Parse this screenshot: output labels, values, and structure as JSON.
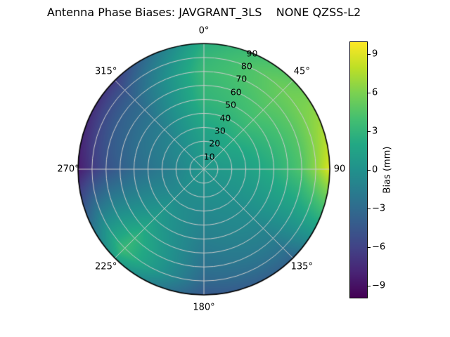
{
  "chart_data": {
    "type": "heatmap",
    "projection": "polar",
    "title": "Antenna Phase Biases: JAVGRANT_3LS    NONE QZSS-L2",
    "theta_direction": "clockwise",
    "theta_zero_location": "top",
    "theta_tick_labels": [
      "0°",
      "45°",
      "90",
      "135°",
      "180°",
      "225°",
      "270°",
      "315°"
    ],
    "theta_tick_angles_deg": [
      0,
      45,
      90,
      135,
      180,
      225,
      270,
      315
    ],
    "r_ticks": [
      10,
      20,
      30,
      40,
      50,
      60,
      70,
      80,
      90
    ],
    "r_tick_labels": [
      "10",
      "20",
      "30",
      "40",
      "50",
      "60",
      "70",
      "80",
      "90"
    ],
    "r_max": 90,
    "r_label_angle_deg": 22.5,
    "azimuth_deg": [
      0,
      45,
      90,
      135,
      180,
      225,
      270,
      315
    ],
    "zenith_deg": [
      0,
      25,
      50,
      70,
      82,
      90
    ],
    "bias_mm": [
      [
        0.5,
        0.5,
        0.5,
        0.5,
        0.5,
        0.5,
        0.5,
        0.5
      ],
      [
        1.5,
        2.0,
        1.0,
        0.0,
        -0.5,
        -0.5,
        -1.5,
        -0.5
      ],
      [
        3.0,
        4.0,
        2.5,
        -0.5,
        -1.5,
        1.0,
        -3.0,
        -2.0
      ],
      [
        3.5,
        5.0,
        4.5,
        -1.5,
        -2.5,
        3.0,
        -5.0,
        -3.5
      ],
      [
        3.0,
        5.5,
        7.0,
        -2.5,
        -3.5,
        3.5,
        -7.0,
        -5.0
      ],
      [
        2.5,
        5.0,
        9.0,
        -3.5,
        -4.5,
        1.5,
        -8.5,
        -6.5
      ]
    ],
    "vmin": -10,
    "vmax": 10,
    "colorbar": {
      "label": "Bias (mm)",
      "tick_values": [
        9,
        6,
        3,
        0,
        -3,
        -6,
        -9
      ],
      "tick_labels": [
        "9",
        "6",
        "3",
        "0",
        "−3",
        "−6",
        "−9"
      ]
    },
    "colormap": {
      "name": "viridis",
      "stops": [
        {
          "t": 0.0,
          "color": "#440154"
        },
        {
          "t": 0.1,
          "color": "#482475"
        },
        {
          "t": 0.2,
          "color": "#414487"
        },
        {
          "t": 0.3,
          "color": "#355f8d"
        },
        {
          "t": 0.4,
          "color": "#2a788e"
        },
        {
          "t": 0.5,
          "color": "#21918c"
        },
        {
          "t": 0.6,
          "color": "#22a884"
        },
        {
          "t": 0.7,
          "color": "#44bf70"
        },
        {
          "t": 0.8,
          "color": "#7ad151"
        },
        {
          "t": 0.9,
          "color": "#bddf26"
        },
        {
          "t": 1.0,
          "color": "#fde725"
        }
      ]
    },
    "grid_color": "#cccccc",
    "outline_color": "#000000",
    "background": "#ffffff"
  }
}
